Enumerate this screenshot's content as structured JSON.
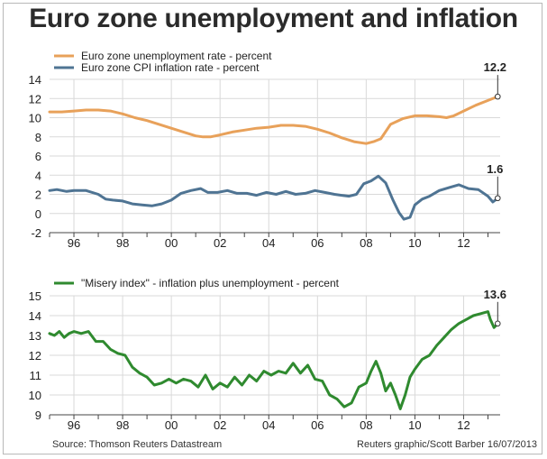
{
  "title": "Euro zone unemployment and inflation",
  "source": "Source: Thomson Reuters Datastream",
  "credit": "Reuters graphic/Scott Barber 16/07/2013",
  "colors": {
    "unemployment": "#e8a15a",
    "inflation": "#4f7493",
    "misery": "#2f8a2f",
    "grid": "#d9d9d9",
    "axis": "#444444"
  },
  "chart_data": [
    {
      "type": "line",
      "panel": "top",
      "ylim": [
        -2,
        14
      ],
      "yticks": [
        -2,
        0,
        2,
        4,
        6,
        8,
        10,
        12,
        14
      ],
      "xlim": [
        1995.0,
        2013.5
      ],
      "xticks": [
        {
          "v": 1996,
          "label": "96"
        },
        {
          "v": 1998,
          "label": "98"
        },
        {
          "v": 2000,
          "label": "00"
        },
        {
          "v": 2002,
          "label": "02"
        },
        {
          "v": 2004,
          "label": "04"
        },
        {
          "v": 2006,
          "label": "06"
        },
        {
          "v": 2008,
          "label": "08"
        },
        {
          "v": 2010,
          "label": "10"
        },
        {
          "v": 2012,
          "label": "12"
        }
      ],
      "grid": true,
      "legend": "top-left",
      "series": [
        {
          "name": "Euro zone unemployment rate - percent",
          "color_key": "unemployment",
          "x": [
            1995.0,
            1995.5,
            1996.0,
            1996.5,
            1997.0,
            1997.5,
            1998.0,
            1998.5,
            1999.0,
            1999.5,
            2000.0,
            2000.5,
            2001.0,
            2001.3,
            2001.6,
            2002.0,
            2002.5,
            2003.0,
            2003.5,
            2004.0,
            2004.5,
            2005.0,
            2005.5,
            2006.0,
            2006.5,
            2007.0,
            2007.5,
            2008.0,
            2008.3,
            2008.6,
            2009.0,
            2009.5,
            2010.0,
            2010.5,
            2011.0,
            2011.3,
            2011.6,
            2012.0,
            2012.5,
            2013.0,
            2013.4
          ],
          "y": [
            10.6,
            10.6,
            10.7,
            10.8,
            10.8,
            10.7,
            10.4,
            10.0,
            9.7,
            9.3,
            8.9,
            8.5,
            8.1,
            8.0,
            8.0,
            8.2,
            8.5,
            8.7,
            8.9,
            9.0,
            9.2,
            9.2,
            9.1,
            8.8,
            8.4,
            7.9,
            7.5,
            7.3,
            7.5,
            7.8,
            9.3,
            9.9,
            10.2,
            10.2,
            10.1,
            10.0,
            10.2,
            10.7,
            11.3,
            11.8,
            12.2
          ]
        },
        {
          "name": "Euro zone CPI inflation rate - percent",
          "color_key": "inflation",
          "x": [
            1995.0,
            1995.3,
            1995.7,
            1996.0,
            1996.5,
            1997.0,
            1997.3,
            1997.6,
            1998.0,
            1998.4,
            1998.8,
            1999.2,
            1999.6,
            2000.0,
            2000.4,
            2000.8,
            2001.2,
            2001.5,
            2001.9,
            2002.3,
            2002.7,
            2003.1,
            2003.5,
            2003.9,
            2004.3,
            2004.7,
            2005.1,
            2005.5,
            2005.9,
            2006.3,
            2006.7,
            2007.0,
            2007.3,
            2007.6,
            2007.9,
            2008.2,
            2008.5,
            2008.8,
            2009.1,
            2009.35,
            2009.55,
            2009.8,
            2010.0,
            2010.3,
            2010.6,
            2011.0,
            2011.4,
            2011.8,
            2012.2,
            2012.6,
            2013.0,
            2013.2,
            2013.4
          ],
          "y": [
            2.4,
            2.5,
            2.3,
            2.4,
            2.4,
            2.0,
            1.5,
            1.4,
            1.3,
            1.0,
            0.9,
            0.8,
            1.0,
            1.4,
            2.1,
            2.4,
            2.6,
            2.2,
            2.2,
            2.4,
            2.1,
            2.1,
            1.9,
            2.2,
            2.0,
            2.3,
            2.0,
            2.1,
            2.4,
            2.2,
            2.0,
            1.9,
            1.8,
            2.0,
            3.1,
            3.4,
            3.9,
            3.2,
            1.4,
            0.1,
            -0.6,
            -0.4,
            0.9,
            1.5,
            1.8,
            2.4,
            2.7,
            3.0,
            2.6,
            2.5,
            1.8,
            1.2,
            1.6
          ]
        }
      ],
      "annotations": [
        {
          "label": "12.2",
          "x": 2013.4,
          "y": 12.2,
          "series": "unemployment"
        },
        {
          "label": "1.6",
          "x": 2013.4,
          "y": 1.6,
          "series": "inflation"
        }
      ]
    },
    {
      "type": "line",
      "panel": "bottom",
      "ylim": [
        9,
        15
      ],
      "yticks": [
        9,
        10,
        11,
        12,
        13,
        14,
        15
      ],
      "xlim": [
        1995.0,
        2013.5
      ],
      "xticks": [
        {
          "v": 1996,
          "label": "96"
        },
        {
          "v": 1998,
          "label": "98"
        },
        {
          "v": 2000,
          "label": "00"
        },
        {
          "v": 2002,
          "label": "02"
        },
        {
          "v": 2004,
          "label": "04"
        },
        {
          "v": 2006,
          "label": "06"
        },
        {
          "v": 2008,
          "label": "08"
        },
        {
          "v": 2010,
          "label": "10"
        },
        {
          "v": 2012,
          "label": "12"
        }
      ],
      "grid": true,
      "legend": "top-left",
      "series": [
        {
          "name": "\"Misery index\" - inflation plus unemployment - percent",
          "color_key": "misery",
          "x": [
            1995.0,
            1995.2,
            1995.4,
            1995.6,
            1995.8,
            1996.0,
            1996.3,
            1996.6,
            1996.9,
            1997.2,
            1997.5,
            1997.8,
            1998.1,
            1998.4,
            1998.7,
            1999.0,
            1999.3,
            1999.6,
            1999.9,
            2000.2,
            2000.5,
            2000.8,
            2001.1,
            2001.4,
            2001.7,
            2002.0,
            2002.3,
            2002.6,
            2002.9,
            2003.2,
            2003.5,
            2003.8,
            2004.1,
            2004.4,
            2004.7,
            2005.0,
            2005.3,
            2005.6,
            2005.9,
            2006.2,
            2006.5,
            2006.8,
            2007.1,
            2007.4,
            2007.7,
            2008.0,
            2008.2,
            2008.4,
            2008.6,
            2008.8,
            2009.0,
            2009.2,
            2009.4,
            2009.6,
            2009.8,
            2010.0,
            2010.3,
            2010.6,
            2010.9,
            2011.2,
            2011.5,
            2011.8,
            2012.1,
            2012.4,
            2012.7,
            2013.0,
            2013.1,
            2013.25,
            2013.4
          ],
          "y": [
            13.1,
            13.0,
            13.2,
            12.9,
            13.1,
            13.2,
            13.1,
            13.2,
            12.7,
            12.7,
            12.3,
            12.1,
            12.0,
            11.4,
            11.1,
            10.9,
            10.5,
            10.6,
            10.8,
            10.6,
            10.8,
            10.7,
            10.4,
            11.0,
            10.3,
            10.6,
            10.4,
            10.9,
            10.5,
            11.0,
            10.7,
            11.2,
            11.0,
            11.2,
            11.1,
            11.6,
            11.1,
            11.5,
            10.8,
            10.7,
            10.0,
            9.8,
            9.4,
            9.6,
            10.4,
            10.6,
            11.2,
            11.7,
            11.1,
            10.2,
            10.6,
            10.0,
            9.3,
            10.0,
            10.9,
            11.3,
            11.8,
            12.0,
            12.5,
            12.9,
            13.3,
            13.6,
            13.8,
            14.0,
            14.1,
            14.2,
            13.8,
            13.4,
            13.6
          ]
        }
      ],
      "annotations": [
        {
          "label": "13.6",
          "x": 2013.4,
          "y": 13.6,
          "series": "misery"
        }
      ]
    }
  ]
}
